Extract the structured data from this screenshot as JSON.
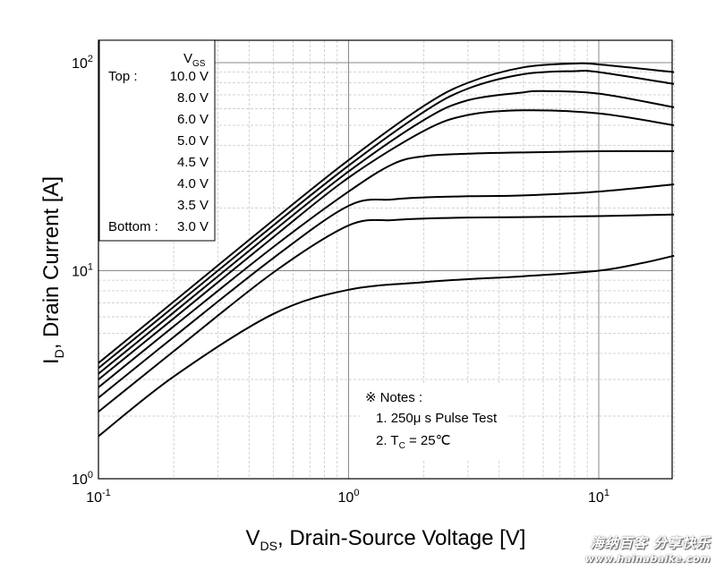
{
  "chart_data": {
    "type": "line",
    "xlabel": "V",
    "xlabel_sub": "DS",
    "xlabel_rest": ", Drain-Source Voltage [V]",
    "ylabel": "I",
    "ylabel_sub": "D",
    "ylabel_rest": ", Drain Current [A]",
    "x_scale": "log",
    "y_scale": "log",
    "xlim": [
      0.1,
      20
    ],
    "ylim": [
      1,
      130
    ],
    "x_ticks": [
      {
        "value": 0.1,
        "base": "10",
        "exp": "-1"
      },
      {
        "value": 1,
        "base": "10",
        "exp": "0"
      },
      {
        "value": 10,
        "base": "10",
        "exp": "1"
      }
    ],
    "y_ticks": [
      {
        "value": 1,
        "base": "10",
        "exp": "0"
      },
      {
        "value": 10,
        "base": "10",
        "exp": "1"
      },
      {
        "value": 100,
        "base": "10",
        "exp": "2"
      }
    ],
    "grid": true,
    "legend": {
      "placement": "top-left",
      "title": "V",
      "title_sub": "GS",
      "top_label": "Top :",
      "bottom_label": "Bottom :",
      "entries": [
        "10.0 V",
        "8.0 V",
        "6.0 V",
        "5.0 V",
        "4.5 V",
        "4.0 V",
        "3.5 V",
        "3.0 V"
      ]
    },
    "series": [
      {
        "x": [
          0.1,
          0.2,
          0.5,
          1,
          2,
          3,
          5,
          8,
          10,
          20
        ],
        "y": [
          3.6,
          7.1,
          17.5,
          34,
          62,
          80,
          95,
          99,
          98,
          90
        ]
      },
      {
        "x": [
          0.1,
          0.2,
          0.5,
          1,
          2,
          3,
          5,
          8,
          10,
          20
        ],
        "y": [
          3.4,
          6.7,
          16.5,
          32,
          58,
          75,
          88,
          91,
          90,
          79
        ]
      },
      {
        "x": [
          0.1,
          0.2,
          0.5,
          1,
          2,
          3,
          5,
          6,
          10,
          20
        ],
        "y": [
          3.2,
          6.3,
          15.5,
          30,
          53,
          66,
          72,
          73,
          71,
          61
        ]
      },
      {
        "x": [
          0.1,
          0.2,
          0.5,
          1,
          2,
          3,
          5,
          10,
          20
        ],
        "y": [
          3.0,
          5.9,
          14.5,
          28,
          47,
          56,
          59,
          57,
          50
        ]
      },
      {
        "x": [
          0.1,
          0.2,
          0.5,
          1,
          1.5,
          2,
          3,
          5,
          10,
          20
        ],
        "y": [
          2.75,
          5.4,
          13,
          24,
          32.5,
          35.5,
          36.5,
          37,
          37.5,
          37.5
        ]
      },
      {
        "x": [
          0.1,
          0.2,
          0.5,
          1,
          1.5,
          2,
          3,
          5,
          10,
          20
        ],
        "y": [
          2.45,
          4.8,
          11.5,
          20.5,
          22,
          22.5,
          22.8,
          23,
          24,
          26
        ]
      },
      {
        "x": [
          0.1,
          0.2,
          0.5,
          1,
          1.5,
          2,
          3,
          5,
          10,
          20
        ],
        "y": [
          2.1,
          4.1,
          9.8,
          16.5,
          17.5,
          17.8,
          18,
          18.1,
          18.3,
          18.6
        ]
      },
      {
        "x": [
          0.1,
          0.2,
          0.5,
          1,
          2,
          3,
          5,
          10,
          15,
          20
        ],
        "y": [
          1.6,
          3.1,
          6.2,
          8.1,
          8.8,
          9.1,
          9.4,
          10,
          10.9,
          11.8
        ]
      }
    ],
    "notes": {
      "symbol": "※",
      "title": "Notes :",
      "items": [
        {
          "prefix": "1. ",
          "main": "250μ s Pulse Test",
          "sub": "",
          "rest": ""
        },
        {
          "prefix": "2. T",
          "main": "",
          "sub": "C",
          "rest": " = 25℃"
        }
      ]
    }
  },
  "watermark": {
    "text": "海纳百客 分享快乐",
    "url": "www.hainabaike.com"
  }
}
